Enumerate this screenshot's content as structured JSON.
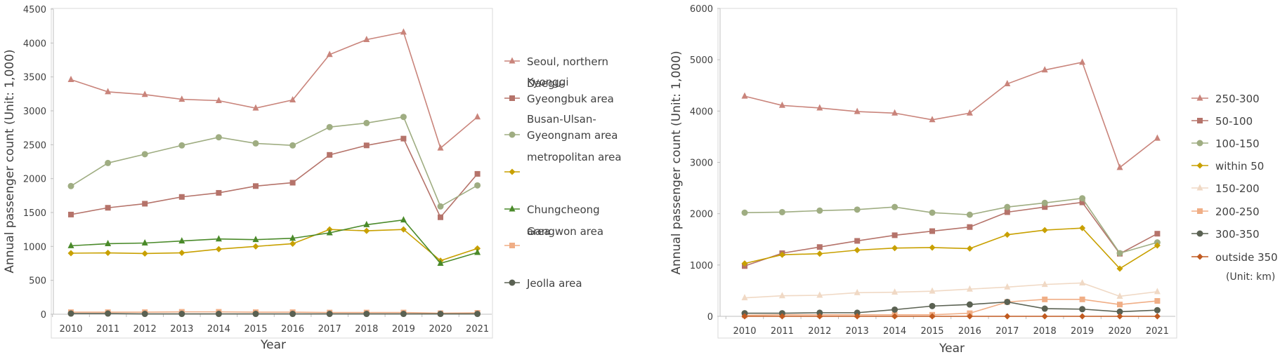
{
  "chart_data": [
    {
      "type": "line",
      "xlabel": "Year",
      "ylabel": "Annual passenger count (Unit: 1,000)",
      "ylim": [
        0,
        4500
      ],
      "yticks": [
        0,
        500,
        1000,
        1500,
        2000,
        2500,
        3000,
        3500,
        4000,
        4500
      ],
      "grid": false,
      "legend_position": "right",
      "categories": [
        "2010",
        "2011",
        "2012",
        "2013",
        "2014",
        "2015",
        "2016",
        "2017",
        "2018",
        "2019",
        "2020",
        "2021"
      ],
      "series": [
        {
          "name": "Seoul, northern Kyonggi",
          "legend_lines": [
            "Seoul, northern",
            "Kyonggi"
          ],
          "color": "#c9847b",
          "marker": "triangle",
          "values": [
            3460,
            3280,
            3240,
            3170,
            3150,
            3040,
            3160,
            3830,
            4050,
            4160,
            2450,
            2910
          ]
        },
        {
          "name": "Daegu-Gyeongbuk area",
          "legend_lines": [
            "Daegu-",
            "Gyeongbuk area"
          ],
          "color": "#b5736a",
          "marker": "square",
          "values": [
            1470,
            1570,
            1630,
            1730,
            1790,
            1890,
            1940,
            2350,
            2490,
            2590,
            1430,
            2070
          ]
        },
        {
          "name": "Busan-Ulsan-Gyeongnam area",
          "legend_lines": [
            "Busan-Ulsan-",
            "Gyeongnam area"
          ],
          "color": "#9fad82",
          "marker": "circle",
          "values": [
            1890,
            2230,
            2360,
            2490,
            2610,
            2520,
            2490,
            2760,
            2820,
            2910,
            1590,
            1900
          ]
        },
        {
          "name": "metropolitan area",
          "legend_lines": [
            "metropolitan area"
          ],
          "color": "#c8a000",
          "marker": "diamond",
          "values": [
            900,
            905,
            895,
            905,
            960,
            1000,
            1040,
            1250,
            1230,
            1250,
            790,
            970
          ]
        },
        {
          "name": "Chungcheong area",
          "legend_lines": [
            "Chungcheong",
            "area"
          ],
          "color": "#4a8a2a",
          "marker": "triangle",
          "values": [
            1010,
            1040,
            1050,
            1080,
            1110,
            1100,
            1120,
            1200,
            1320,
            1390,
            750,
            910
          ]
        },
        {
          "name": "Gangwon area",
          "legend_lines": [
            "Gangwon area"
          ],
          "color": "#f0ae86",
          "marker": "square",
          "values": [
            30,
            30,
            30,
            35,
            35,
            30,
            30,
            25,
            25,
            25,
            15,
            20
          ]
        },
        {
          "name": "Jeolla area",
          "legend_lines": [
            "Jeolla area"
          ],
          "color": "#5a6152",
          "marker": "circle",
          "values": [
            10,
            10,
            5,
            5,
            5,
            5,
            5,
            5,
            5,
            5,
            5,
            5
          ]
        }
      ]
    },
    {
      "type": "line",
      "xlabel": "Year",
      "ylabel": "Annual passenger count (Unit: 1,000)",
      "ylim": [
        0,
        6000
      ],
      "yticks": [
        0,
        1000,
        2000,
        3000,
        4000,
        5000,
        6000
      ],
      "grid": false,
      "legend_position": "right",
      "unit_note": "(Unit: km)",
      "categories": [
        "2010",
        "2011",
        "2012",
        "2013",
        "2014",
        "2015",
        "2016",
        "2017",
        "2018",
        "2019",
        "2020",
        "2021"
      ],
      "series": [
        {
          "name": "250-300",
          "color": "#c9847b",
          "marker": "triangle",
          "values": [
            4290,
            4110,
            4060,
            3990,
            3960,
            3830,
            3960,
            4530,
            4800,
            4950,
            2900,
            3470
          ]
        },
        {
          "name": "50-100",
          "color": "#b5736a",
          "marker": "square",
          "values": [
            980,
            1230,
            1350,
            1470,
            1580,
            1660,
            1740,
            2030,
            2130,
            2220,
            1220,
            1610
          ]
        },
        {
          "name": "100-150",
          "color": "#9fad82",
          "marker": "circle",
          "values": [
            2020,
            2030,
            2060,
            2080,
            2130,
            2020,
            1980,
            2130,
            2210,
            2300,
            1230,
            1440
          ]
        },
        {
          "name": "within 50",
          "color": "#c8a000",
          "marker": "diamond",
          "values": [
            1030,
            1200,
            1220,
            1290,
            1330,
            1340,
            1320,
            1590,
            1680,
            1720,
            930,
            1380
          ]
        },
        {
          "name": "150-200",
          "color": "#f0d9c5",
          "marker": "triangle",
          "values": [
            360,
            400,
            410,
            460,
            470,
            490,
            530,
            570,
            620,
            650,
            390,
            480
          ]
        },
        {
          "name": "200-250",
          "color": "#f0ae86",
          "marker": "square",
          "values": [
            20,
            30,
            30,
            30,
            30,
            30,
            60,
            280,
            330,
            330,
            230,
            300
          ]
        },
        {
          "name": "300-350",
          "color": "#5a6152",
          "marker": "circle",
          "values": [
            60,
            60,
            70,
            70,
            130,
            200,
            230,
            280,
            150,
            140,
            90,
            120
          ]
        },
        {
          "name": "outside 350",
          "color": "#c05a20",
          "marker": "diamond",
          "values": [
            0,
            0,
            0,
            0,
            0,
            0,
            0,
            0,
            0,
            0,
            0,
            0
          ]
        }
      ]
    }
  ]
}
